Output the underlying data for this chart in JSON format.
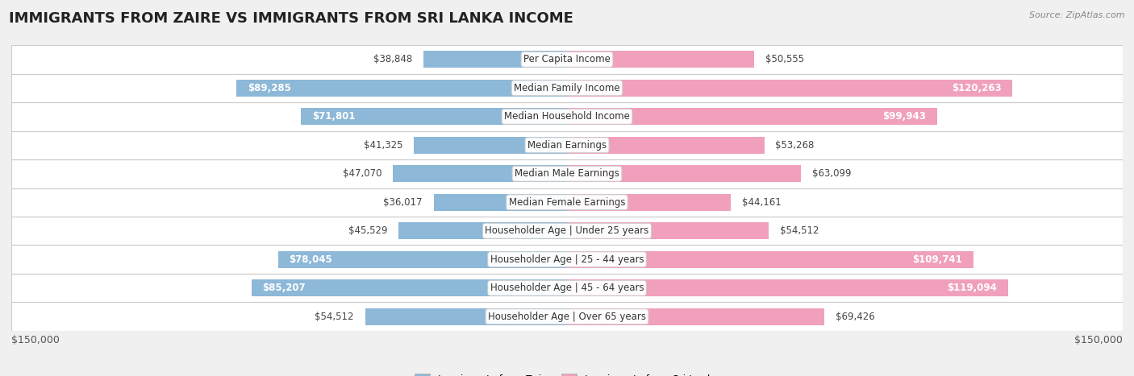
{
  "title": "IMMIGRANTS FROM ZAIRE VS IMMIGRANTS FROM SRI LANKA INCOME",
  "source": "Source: ZipAtlas.com",
  "categories": [
    "Per Capita Income",
    "Median Family Income",
    "Median Household Income",
    "Median Earnings",
    "Median Male Earnings",
    "Median Female Earnings",
    "Householder Age | Under 25 years",
    "Householder Age | 25 - 44 years",
    "Householder Age | 45 - 64 years",
    "Householder Age | Over 65 years"
  ],
  "zaire_values": [
    38848,
    89285,
    71801,
    41325,
    47070,
    36017,
    45529,
    78045,
    85207,
    54512
  ],
  "srilanka_values": [
    50555,
    120263,
    99943,
    53268,
    63099,
    44161,
    54512,
    109741,
    119094,
    69426
  ],
  "zaire_labels": [
    "$38,848",
    "$89,285",
    "$71,801",
    "$41,325",
    "$47,070",
    "$36,017",
    "$45,529",
    "$78,045",
    "$85,207",
    "$54,512"
  ],
  "srilanka_labels": [
    "$50,555",
    "$120,263",
    "$99,943",
    "$53,268",
    "$63,099",
    "$44,161",
    "$54,512",
    "$109,741",
    "$119,094",
    "$69,426"
  ],
  "zaire_color": "#8db8d8",
  "srilanka_color": "#f0a0bc",
  "zaire_color_strong": "#5a8ec8",
  "srilanka_color_strong": "#e85c8a",
  "max_value": 150000,
  "axis_label_left": "$150,000",
  "axis_label_right": "$150,000",
  "legend_zaire": "Immigrants from Zaire",
  "legend_srilanka": "Immigrants from Sri Lanka",
  "bg_color": "#f0f0f0",
  "row_bg_color": "#ffffff",
  "title_fontsize": 13,
  "category_fontsize": 8.5,
  "value_fontsize": 8.5
}
